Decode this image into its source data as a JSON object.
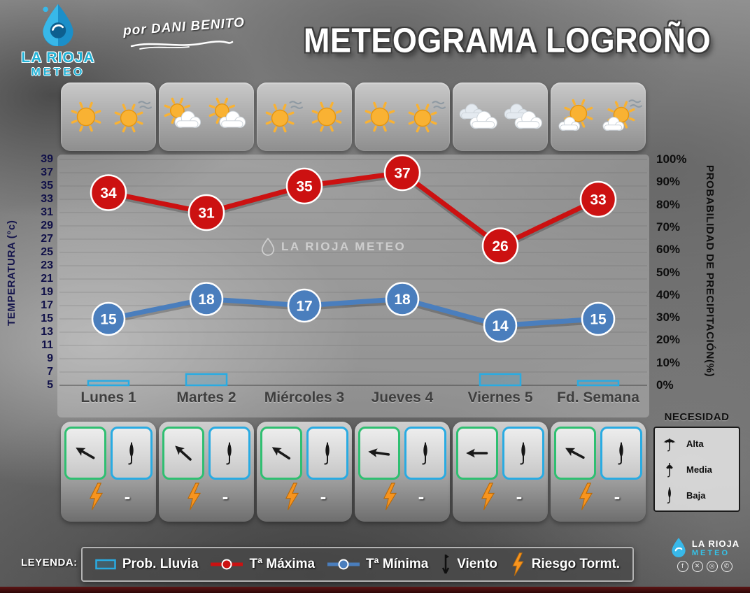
{
  "header": {
    "title": "METEOGRAMA LOGROÑO",
    "byline": "por DANI BENITO",
    "logo": {
      "line1": "LA RIOJA",
      "line2": "METEO"
    }
  },
  "watermark": "LA RIOJA METEO",
  "chart_data": {
    "type": "line",
    "title": "METEOGRAMA LOGROÑO",
    "categories": [
      "Lunes 1",
      "Martes 2",
      "Miércoles 3",
      "Jueves 4",
      "Viernes 5",
      "Fd. Semana"
    ],
    "series": [
      {
        "name": "Tª Máxima",
        "color": "#cc1111",
        "values": [
          34,
          31,
          35,
          37,
          26,
          33
        ]
      },
      {
        "name": "Tª Mínima",
        "color": "#4a7ebd",
        "values": [
          15,
          18,
          17,
          18,
          14,
          15
        ]
      }
    ],
    "rain_probability": {
      "name": "Prob. Lluvia",
      "color": "#29abe2",
      "values_percent": [
        2,
        5,
        0,
        0,
        5,
        2
      ]
    },
    "left_axis": {
      "label": "TEMPERATURA (°c)",
      "min": 5,
      "max": 39,
      "ticks": [
        39,
        37,
        35,
        33,
        31,
        29,
        27,
        25,
        23,
        21,
        19,
        17,
        15,
        13,
        11,
        9,
        7,
        5
      ]
    },
    "right_axis": {
      "label": "PROBABILIDAD DE PRECIPITACIÓN(%)",
      "ticks": [
        "100%",
        "90%",
        "80%",
        "70%",
        "60%",
        "50%",
        "40%",
        "30%",
        "20%",
        "10%",
        "0%"
      ]
    },
    "grid": true,
    "legend_position": "bottom"
  },
  "days": [
    {
      "label": "Lunes 1",
      "icons": [
        "sun",
        "sun-wind"
      ],
      "wind_rotation_deg": 30,
      "umbrella": "baja",
      "storm_risk": true,
      "need_value": "-"
    },
    {
      "label": "Martes 2",
      "icons": [
        "cloud-sun",
        "cloud-sun"
      ],
      "wind_rotation_deg": 42,
      "umbrella": "baja",
      "storm_risk": true,
      "need_value": "-"
    },
    {
      "label": "Miércoles 3",
      "icons": [
        "sun-wind",
        "sun"
      ],
      "wind_rotation_deg": 33,
      "umbrella": "baja",
      "storm_risk": true,
      "need_value": "-"
    },
    {
      "label": "Jueves 4",
      "icons": [
        "sun",
        "sun-wind"
      ],
      "wind_rotation_deg": 8,
      "umbrella": "baja",
      "storm_risk": true,
      "need_value": "-"
    },
    {
      "label": "Viernes 5",
      "icons": [
        "cloudy",
        "cloudy"
      ],
      "wind_rotation_deg": 0,
      "umbrella": "baja",
      "storm_risk": true,
      "need_value": "-"
    },
    {
      "label": "Fd. Semana",
      "icons": [
        "sun-cloud",
        "sun-cloud-wind"
      ],
      "wind_rotation_deg": 28,
      "umbrella": "baja",
      "storm_risk": true,
      "need_value": "-"
    }
  ],
  "necesidad": {
    "title": "NECESIDAD",
    "levels": [
      {
        "icon": "alta",
        "label": "Alta"
      },
      {
        "icon": "media",
        "label": "Media"
      },
      {
        "icon": "baja",
        "label": "Baja"
      }
    ]
  },
  "legend": {
    "label": "LEYENDA:",
    "items": [
      {
        "icon": "rain-bar",
        "label": "Prob. Lluvia"
      },
      {
        "icon": "line-max",
        "label": "Tª Máxima"
      },
      {
        "icon": "line-min",
        "label": "Tª Mínima"
      },
      {
        "icon": "wind",
        "label": "Viento"
      },
      {
        "icon": "storm",
        "label": "Riesgo Tormt."
      }
    ]
  },
  "footer": {
    "logo_line1": "LA RIOJA",
    "logo_line2": "METEO",
    "social_icons": [
      "facebook",
      "x",
      "instagram",
      "whatsapp"
    ]
  },
  "colors": {
    "accent_cyan": "#29abe2",
    "accent_green": "#2fbf71",
    "bolt_orange": "#f7941e"
  }
}
